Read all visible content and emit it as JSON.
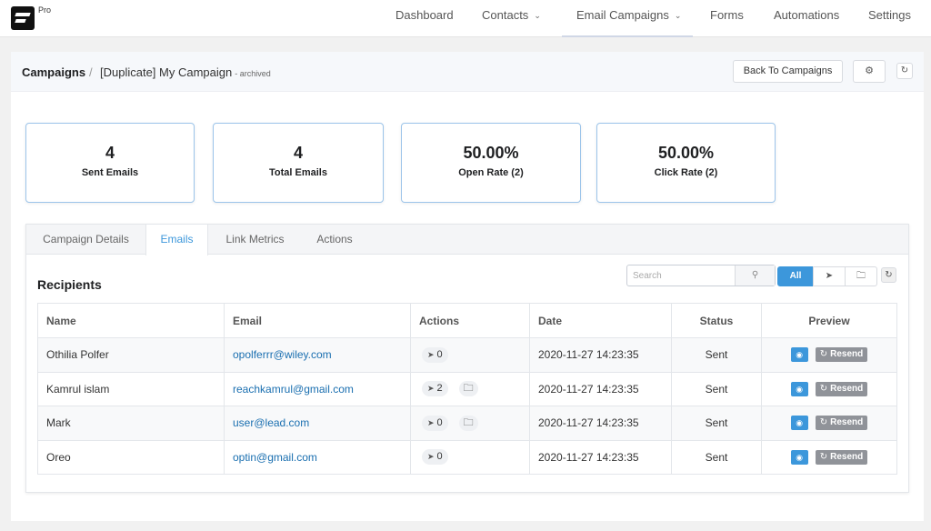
{
  "brand": {
    "badge": "Pro"
  },
  "nav": [
    {
      "label": "Dashboard",
      "dropdown": false,
      "active": false
    },
    {
      "label": "Contacts",
      "dropdown": true,
      "active": false
    },
    {
      "label": "Email Campaigns",
      "dropdown": true,
      "active": true
    },
    {
      "label": "Forms",
      "dropdown": false,
      "active": false
    },
    {
      "label": "Automations",
      "dropdown": false,
      "active": false
    },
    {
      "label": "Settings",
      "dropdown": false,
      "active": false
    }
  ],
  "header": {
    "breadcrumb_root": "Campaigns",
    "separator": "/",
    "campaign_name": "[Duplicate] My Campaign",
    "campaign_status": "- archived",
    "back_button": "Back To Campaigns"
  },
  "stats": [
    {
      "value": "4",
      "label": "Sent Emails"
    },
    {
      "value": "4",
      "label": "Total Emails"
    },
    {
      "value": "50.00%",
      "label": "Open Rate (2)"
    },
    {
      "value": "50.00%",
      "label": "Click Rate (2)"
    }
  ],
  "tabs": [
    {
      "label": "Campaign Details",
      "active": false
    },
    {
      "label": "Emails",
      "active": true
    },
    {
      "label": "Link Metrics",
      "active": false
    },
    {
      "label": "Actions",
      "active": false
    }
  ],
  "recipients": {
    "title": "Recipients",
    "search_placeholder": "Search",
    "filter_all": "All",
    "columns": {
      "name": "Name",
      "email": "Email",
      "actions": "Actions",
      "date": "Date",
      "status": "Status",
      "preview": "Preview"
    },
    "resend_label": "Resend",
    "rows": [
      {
        "name": "Othilia Polfer",
        "email": "opolferrr@wiley.com",
        "clicks": "0",
        "has_folder": false,
        "date": "2020-11-27 14:23:35",
        "status": "Sent"
      },
      {
        "name": "Kamrul islam",
        "email": "reachkamrul@gmail.com",
        "clicks": "2",
        "has_folder": true,
        "date": "2020-11-27 14:23:35",
        "status": "Sent"
      },
      {
        "name": "Mark",
        "email": "user@lead.com",
        "clicks": "0",
        "has_folder": true,
        "date": "2020-11-27 14:23:35",
        "status": "Sent"
      },
      {
        "name": "Oreo",
        "email": "optin@gmail.com",
        "clicks": "0",
        "has_folder": false,
        "date": "2020-11-27 14:23:35",
        "status": "Sent"
      }
    ]
  },
  "colors": {
    "accent": "#3c97db",
    "link": "#1a6fb0",
    "card_border": "#9cc4ea",
    "resend_bg": "#909399"
  }
}
